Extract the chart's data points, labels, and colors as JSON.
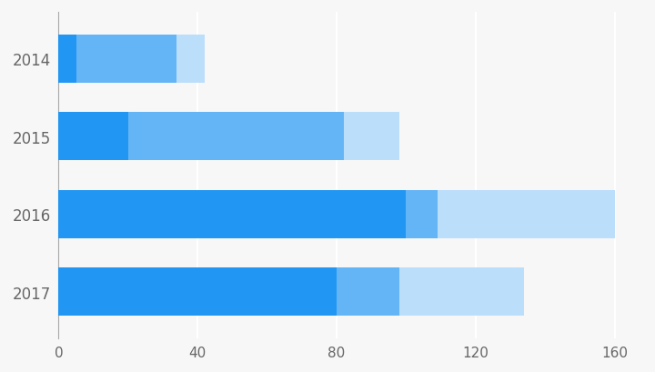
{
  "years": [
    "2014",
    "2015",
    "2016",
    "2017"
  ],
  "seg1": [
    5,
    20,
    100,
    80
  ],
  "seg2": [
    29,
    62,
    9,
    18
  ],
  "seg3": [
    8,
    16,
    51,
    36
  ],
  "color1": "#2196F3",
  "color2": "#64B5F6",
  "color3": "#BBDEFB",
  "background": "#F7F7F7",
  "xlim": [
    0,
    168
  ],
  "xticks": [
    0,
    40,
    80,
    120,
    160
  ],
  "bar_height": 0.62,
  "figsize": [
    7.2,
    4.1
  ],
  "dpi": 100,
  "ytick_fontsize": 12,
  "xtick_fontsize": 11,
  "tick_color": "#666666",
  "grid_color": "#FFFFFF",
  "grid_linewidth": 1.5,
  "spine_color": "#AAAAAA"
}
